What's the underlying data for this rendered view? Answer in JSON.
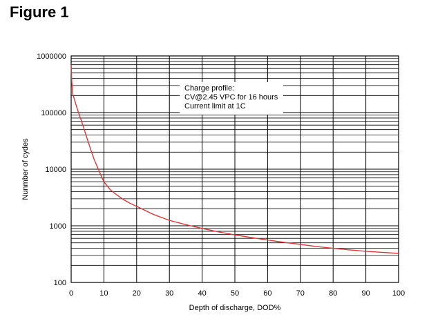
{
  "figure_title": "Figure 1",
  "chart_data": {
    "type": "line",
    "xlabel": "Depth of discharge, DOD%",
    "ylabel": "Nunmber of cydes",
    "y_scale": "log",
    "xlim": [
      0,
      100
    ],
    "ylim": [
      100,
      1000000
    ],
    "grid": true,
    "x_ticks": [
      "0",
      "10",
      "20",
      "30",
      "40",
      "50",
      "60",
      "70",
      "80",
      "90",
      "100"
    ],
    "y_ticks": [
      "100",
      "1000",
      "10000",
      "100000",
      "1000000"
    ],
    "annotation": [
      "Charge profile:",
      "CV@2.45 VPC for 16 hours",
      "Current limit at 1C"
    ],
    "line_color": "#d9383a",
    "series": [
      {
        "x": [
          0,
          0.2,
          0.5,
          1,
          2,
          3,
          4,
          5,
          6,
          7,
          8,
          9,
          10,
          12,
          14,
          16,
          18,
          20,
          25,
          30,
          35,
          40,
          45,
          50,
          55,
          60,
          65,
          70,
          75,
          80,
          85,
          90,
          95,
          100
        ],
        "y": [
          700000,
          350000,
          210000,
          170000,
          110000,
          75000,
          50000,
          33000,
          22000,
          15000,
          11000,
          8000,
          6000,
          4300,
          3500,
          2900,
          2500,
          2200,
          1600,
          1250,
          1050,
          900,
          780,
          690,
          620,
          560,
          510,
          470,
          430,
          400,
          375,
          355,
          340,
          325
        ]
      }
    ]
  }
}
